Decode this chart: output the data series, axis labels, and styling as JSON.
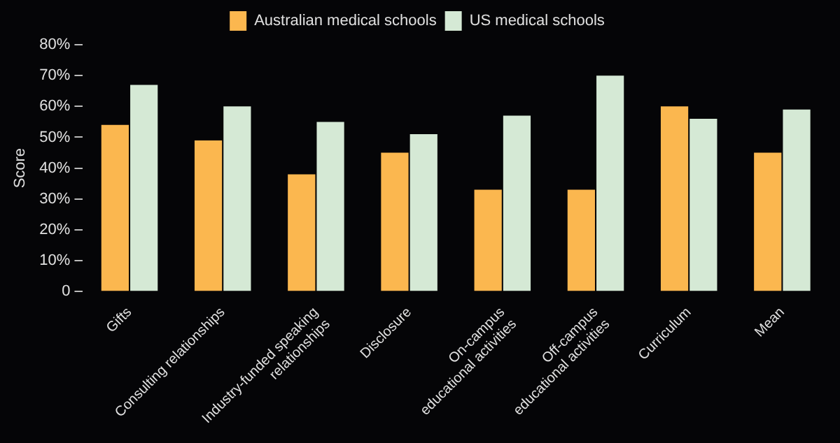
{
  "chart_data": {
    "type": "bar",
    "ylabel": "Score",
    "categories": [
      "Gifts",
      "Consulting relationships",
      "Industry-funded speaking\nrelationships",
      "Disclosure",
      "On-campus\neducational activities",
      "Off-campus\neducational activities",
      "Curriculum",
      "Mean"
    ],
    "series": [
      {
        "name": "Australian medical schools",
        "color": "#fbb74f",
        "values": [
          54,
          49,
          38,
          45,
          33,
          33,
          60,
          45
        ]
      },
      {
        "name": "US medical schools",
        "color": "#d5e9d5",
        "values": [
          67,
          60,
          55,
          51,
          57,
          70,
          56,
          59
        ]
      }
    ],
    "ylim": [
      0,
      80
    ],
    "yticks": [
      {
        "value": 0,
        "label": "0"
      },
      {
        "value": 10,
        "label": "10%"
      },
      {
        "value": 20,
        "label": "20%"
      },
      {
        "value": 30,
        "label": "30%"
      },
      {
        "value": 40,
        "label": "40%"
      },
      {
        "value": 50,
        "label": "50%"
      },
      {
        "value": 60,
        "label": "60%"
      },
      {
        "value": 70,
        "label": "70%"
      },
      {
        "value": 80,
        "label": "80%"
      }
    ],
    "grid": false,
    "legend": "top"
  }
}
